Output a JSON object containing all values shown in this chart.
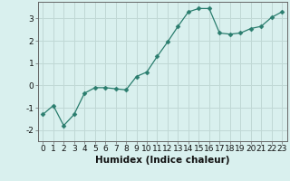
{
  "x": [
    0,
    1,
    2,
    3,
    4,
    5,
    6,
    7,
    8,
    9,
    10,
    11,
    12,
    13,
    14,
    15,
    16,
    17,
    18,
    19,
    20,
    21,
    22,
    23
  ],
  "y": [
    -1.3,
    -0.9,
    -1.8,
    -1.3,
    -0.35,
    -0.1,
    -0.1,
    -0.15,
    -0.2,
    0.4,
    0.6,
    1.3,
    1.95,
    2.65,
    3.3,
    3.45,
    3.45,
    2.35,
    2.3,
    2.35,
    2.55,
    2.65,
    3.05,
    3.3
  ],
  "line_color": "#2a7d6e",
  "marker": "D",
  "marker_size": 2.5,
  "bg_color": "#d9f0ee",
  "grid_color": "#c0d8d5",
  "axis_color": "#666666",
  "xlabel": "Humidex (Indice chaleur)",
  "xlabel_fontsize": 7.5,
  "xlabel_weight": "bold",
  "tick_fontsize": 6.5,
  "ylim": [
    -2.5,
    3.75
  ],
  "yticks": [
    -2,
    -1,
    0,
    1,
    2,
    3
  ],
  "xlim": [
    -0.5,
    23.5
  ]
}
